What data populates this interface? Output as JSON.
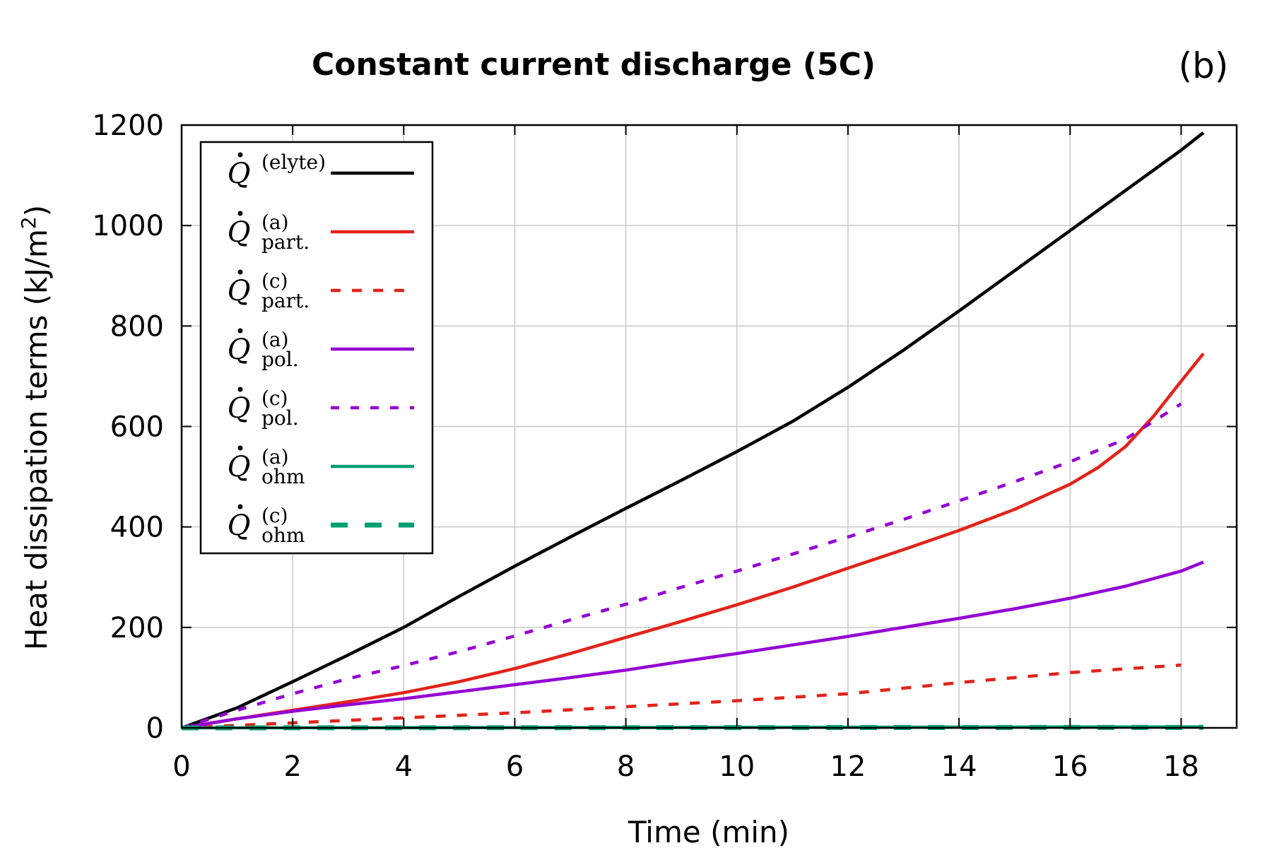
{
  "chart_data": {
    "type": "line",
    "title": "Constant current discharge (5C)",
    "panel_label": "(b)",
    "xlabel": "Time (min)",
    "ylabel": {
      "base": "Heat dissipation terms (kJ/m",
      "sup": "2",
      "close": ")"
    },
    "xlim": [
      0,
      19
    ],
    "ylim": [
      0,
      1200
    ],
    "xticks": [
      "0",
      "2",
      "4",
      "6",
      "8",
      "10",
      "12",
      "14",
      "16",
      "18"
    ],
    "yticks": [
      "0",
      "200",
      "400",
      "600",
      "800",
      "1000",
      "1200"
    ],
    "grid": true,
    "legend_position": "top-left",
    "series": [
      {
        "name": "Q̇(elyte)",
        "legend": {
          "sup": "(elyte)",
          "sub": ""
        },
        "color": "#000000",
        "dash": "solid",
        "x": [
          0,
          1,
          2,
          3,
          4,
          5,
          6,
          7,
          8,
          9,
          10,
          11,
          12,
          13,
          14,
          15,
          16,
          17,
          18,
          18.4
        ],
        "y": [
          0,
          40,
          92,
          145,
          200,
          262,
          322,
          380,
          437,
          493,
          550,
          610,
          678,
          752,
          830,
          910,
          990,
          1070,
          1150,
          1185
        ]
      },
      {
        "name": "Q̇(a) part.",
        "legend": {
          "sup": "(a)",
          "sub": "part."
        },
        "color": "#e2231a",
        "dash": "solid",
        "x": [
          0,
          1,
          2,
          3,
          4,
          5,
          6,
          7,
          8,
          9,
          10,
          11,
          12,
          13,
          14,
          15,
          16,
          16.5,
          17,
          17.5,
          18,
          18.4
        ],
        "y": [
          0,
          18,
          35,
          52,
          70,
          92,
          118,
          148,
          180,
          212,
          245,
          280,
          318,
          355,
          393,
          435,
          485,
          518,
          560,
          620,
          690,
          745
        ]
      },
      {
        "name": "Q̇(c) part.",
        "legend": {
          "sup": "(c)",
          "sub": "part."
        },
        "color": "#e2231a",
        "dash": "dashed",
        "x": [
          0,
          2,
          4,
          6,
          8,
          10,
          12,
          14,
          16,
          18
        ],
        "y": [
          0,
          10,
          20,
          30,
          42,
          54,
          68,
          90,
          110,
          125
        ]
      },
      {
        "name": "Q̇(a) pol.",
        "legend": {
          "sup": "(a)",
          "sub": "pol."
        },
        "color": "#9400d3",
        "dash": "solid",
        "x": [
          0,
          1,
          2,
          3,
          4,
          5,
          6,
          7,
          8,
          9,
          10,
          11,
          12,
          13,
          14,
          15,
          16,
          17,
          18,
          18.4
        ],
        "y": [
          0,
          18,
          33,
          46,
          58,
          72,
          86,
          100,
          115,
          132,
          148,
          165,
          182,
          200,
          218,
          237,
          258,
          282,
          312,
          330
        ]
      },
      {
        "name": "Q̇(c) pol.",
        "legend": {
          "sup": "(c)",
          "sub": "pol."
        },
        "color": "#9400d3",
        "dash": "dotted",
        "x": [
          0,
          1,
          2,
          3,
          4,
          5,
          6,
          7,
          8,
          9,
          10,
          11,
          12,
          13,
          14,
          15,
          16,
          17,
          18
        ],
        "y": [
          0,
          35,
          68,
          98,
          124,
          152,
          183,
          215,
          246,
          280,
          312,
          346,
          380,
          415,
          452,
          490,
          530,
          575,
          645
        ]
      },
      {
        "name": "Q̇(a) ohm",
        "legend": {
          "sup": "(a)",
          "sub": "ohm"
        },
        "color": "#009e73",
        "dash": "solid",
        "x": [
          0,
          18.4
        ],
        "y": [
          0,
          2
        ]
      },
      {
        "name": "Q̇(c) ohm",
        "legend": {
          "sup": "(c)",
          "sub": "ohm"
        },
        "color": "#009e73",
        "dash": "dashed-thick",
        "x": [
          0,
          18.4
        ],
        "y": [
          0,
          1
        ]
      }
    ]
  }
}
